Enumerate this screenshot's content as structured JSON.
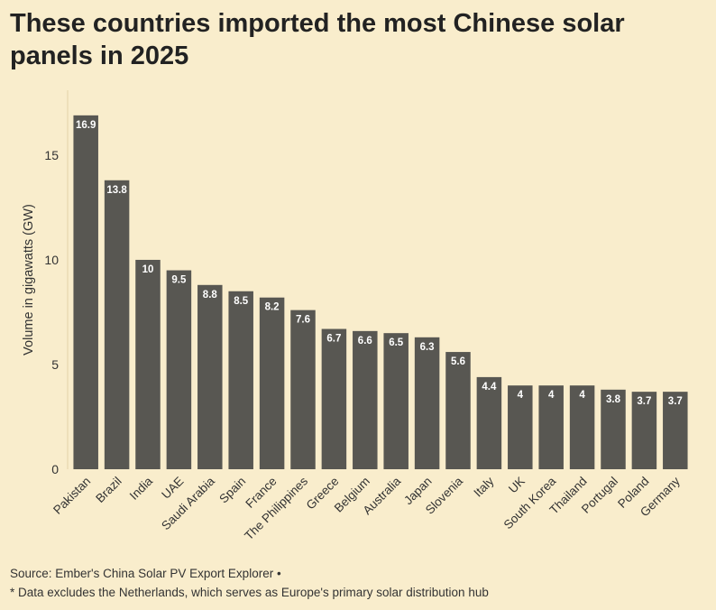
{
  "title": "These countries imported the most Chinese solar panels in 2025",
  "footer": {
    "source": "Source: Ember's China Solar PV Export Explorer •",
    "note": "* Data excludes the Netherlands, which serves as Europe's primary solar distribution hub"
  },
  "colors": {
    "background": "#f9edcc",
    "bar": "#585752",
    "bar_label": "#ffffff"
  },
  "chart_data": {
    "type": "bar",
    "title": "These countries imported the most Chinese solar panels in 2025",
    "xlabel": "",
    "ylabel": "Volume in gigawatts (GW)",
    "ylim": [
      0,
      18.1
    ],
    "yticks": [
      0,
      5,
      10,
      15
    ],
    "grid": false,
    "categories": [
      "Pakistan",
      "Brazil",
      "India",
      "UAE",
      "Saudi Arabia",
      "Spain",
      "France",
      "The Philippines",
      "Greece",
      "Belgium",
      "Australia",
      "Japan",
      "Slovenia",
      "Italy",
      "UK",
      "South Korea",
      "Thailand",
      "Portugal",
      "Poland",
      "Germany"
    ],
    "values": [
      16.9,
      13.8,
      10,
      9.5,
      8.8,
      8.5,
      8.2,
      7.6,
      6.7,
      6.6,
      6.5,
      6.3,
      5.6,
      4.4,
      4,
      4,
      4,
      3.8,
      3.7,
      3.7
    ],
    "data_labels": [
      "16.9",
      "13.8",
      "10",
      "9.5",
      "8.8",
      "8.5",
      "8.2",
      "7.6",
      "6.7",
      "6.6",
      "6.5",
      "6.3",
      "5.6",
      "4.4",
      "4",
      "4",
      "4",
      "3.8",
      "3.7",
      "3.7"
    ]
  }
}
